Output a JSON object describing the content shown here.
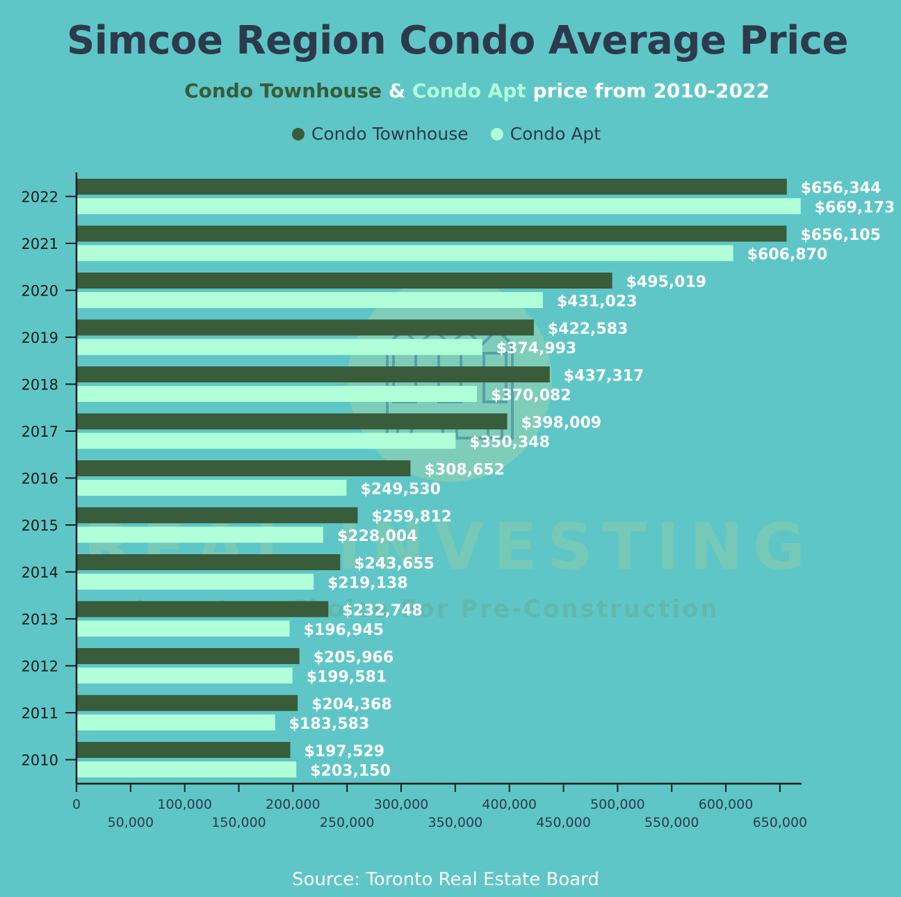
{
  "header": {
    "title": "Simcoe Region Condo Average Price",
    "subtitle_part1": "Condo Townhouse",
    "subtitle_amp": " & ",
    "subtitle_part2": "Condo Apt",
    "subtitle_part3": " price from 2010-2022"
  },
  "legend": {
    "items": [
      {
        "label": "Condo Townhouse",
        "color": "#395c3b"
      },
      {
        "label": "Condo Apt",
        "color": "#b0ffd8"
      }
    ]
  },
  "watermark": {
    "brand": "REAL INVESTING",
    "tagline": "Investors Choice For Pre-Construction",
    "icon": "townhouse-building-icon"
  },
  "source": "Source: Toronto Real Estate Board",
  "chart_data": {
    "type": "bar",
    "orientation": "horizontal",
    "categories": [
      "2022",
      "2021",
      "2020",
      "2019",
      "2018",
      "2017",
      "2016",
      "2015",
      "2014",
      "2013",
      "2012",
      "2011",
      "2010"
    ],
    "series": [
      {
        "name": "Condo Townhouse",
        "color": "#395c3b",
        "values": [
          656344,
          656105,
          495019,
          422583,
          437317,
          398009,
          308652,
          259812,
          243655,
          232748,
          205966,
          204368,
          197529
        ],
        "labels": [
          "$656,344",
          "$656,105",
          "$495,019",
          "$422,583",
          "$437,317",
          "$398,009",
          "$308,652",
          "$259,812",
          "$243,655",
          "$232,748",
          "$205,966",
          "$204,368",
          "$197,529"
        ]
      },
      {
        "name": "Condo Apt",
        "color": "#b0ffd8",
        "values": [
          669173,
          606870,
          431023,
          374993,
          370082,
          350348,
          249530,
          228004,
          219138,
          196945,
          199581,
          183583,
          203150
        ],
        "labels": [
          "$669,173",
          "$606,870",
          "$431,023",
          "$374,993",
          "$370,082",
          "$350,348",
          "$249,530",
          "$228,004",
          "$219,138",
          "$196,945",
          "$199,581",
          "$183,583",
          "$203,150"
        ]
      }
    ],
    "x_ticks": [
      "0",
      "50,000",
      "100,000",
      "150,000",
      "200,000",
      "250,000",
      "300,000",
      "350,000",
      "400,000",
      "450,000",
      "500,000",
      "550,000",
      "600,000",
      "650,000"
    ],
    "xlim": [
      0,
      670000
    ],
    "grid": false,
    "legend_position": "top-center"
  }
}
